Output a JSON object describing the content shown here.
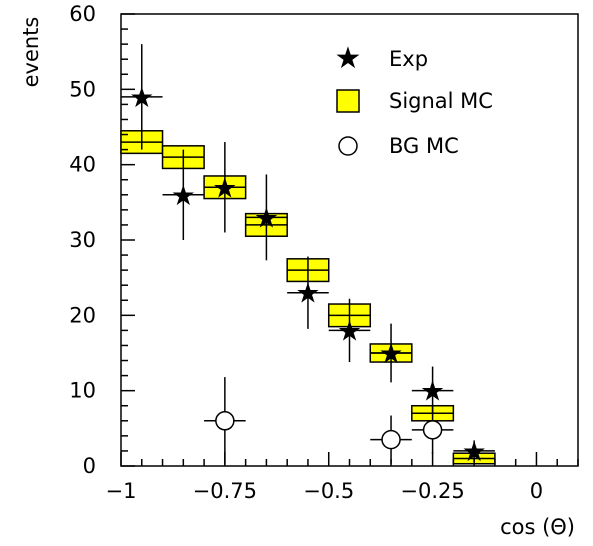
{
  "chart_data": {
    "type": "scatter",
    "title": "",
    "xlabel": "cos (Θ)",
    "ylabel": "events",
    "xlim": [
      -1.0,
      0.1
    ],
    "ylim": [
      0,
      60
    ],
    "xticks": [
      {
        "value": -1.0,
        "label": "−1"
      },
      {
        "value": -0.75,
        "label": "−0.75"
      },
      {
        "value": -0.5,
        "label": "−0.5"
      },
      {
        "value": -0.25,
        "label": "−0.25"
      },
      {
        "value": 0.0,
        "label": "0"
      }
    ],
    "yticks": [
      {
        "value": 0,
        "label": "0"
      },
      {
        "value": 10,
        "label": "10"
      },
      {
        "value": 20,
        "label": "20"
      },
      {
        "value": 30,
        "label": "30"
      },
      {
        "value": 40,
        "label": "40"
      },
      {
        "value": 50,
        "label": "50"
      },
      {
        "value": 60,
        "label": "60"
      }
    ],
    "grid": false,
    "legend": {
      "placement": "top-right",
      "entries": [
        {
          "label": "Exp",
          "marker": "filled-star"
        },
        {
          "label": "Signal MC",
          "marker": "yellow-box"
        },
        {
          "label": "BG MC",
          "marker": "open-circle"
        }
      ]
    },
    "series": [
      {
        "name": "Exp",
        "marker": "filled-star",
        "color": "#000000",
        "x": [
          -0.95,
          -0.85,
          -0.75,
          -0.65,
          -0.55,
          -0.45,
          -0.35,
          -0.25,
          -0.15
        ],
        "y": [
          49,
          36,
          37,
          33,
          23,
          18,
          15,
          10,
          2
        ],
        "xerr": 0.05,
        "yerr": [
          7,
          6,
          6,
          5.7,
          4.8,
          4.2,
          3.9,
          3.2,
          1.4
        ]
      },
      {
        "name": "Signal MC",
        "marker": "yellow-box",
        "color": "#ffff00",
        "x": [
          -0.95,
          -0.85,
          -0.75,
          -0.65,
          -0.55,
          -0.45,
          -0.35,
          -0.25,
          -0.15
        ],
        "y": [
          43,
          41,
          37,
          32,
          26,
          20,
          15,
          7,
          1
        ],
        "xerr": 0.05,
        "yerr": [
          1.5,
          1.5,
          1.5,
          1.5,
          1.5,
          1.5,
          1.2,
          1.0,
          0.7
        ]
      },
      {
        "name": "BG MC",
        "marker": "open-circle",
        "color": "#000000",
        "x": [
          -0.75,
          -0.35,
          -0.25
        ],
        "y": [
          6,
          3.5,
          4.8
        ],
        "xerr": 0.05,
        "yerr": [
          5.8,
          3.2,
          3.2
        ]
      }
    ]
  }
}
